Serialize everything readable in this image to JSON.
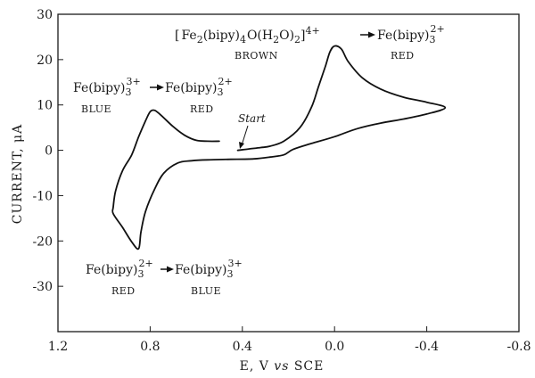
{
  "chart_data": {
    "type": "line",
    "title": "",
    "xlabel_parts": [
      "E,  V ",
      "vs",
      " SCE"
    ],
    "ylabel": "CURRENT, μA",
    "xlim": [
      1.2,
      -0.8
    ],
    "ylim": [
      -40,
      30
    ],
    "x_ticks": [
      1.2,
      0.8,
      0.4,
      0.0,
      -0.4,
      -0.8
    ],
    "x_tick_labels": [
      "1.2",
      "0.8",
      "0.4",
      "0.0",
      "-0.4",
      "-0.8"
    ],
    "y_ticks": [
      30,
      20,
      10,
      0,
      -10,
      -20,
      -30
    ],
    "y_tick_labels": [
      "30",
      "20",
      "10",
      "0",
      "-10",
      "-20",
      "-30"
    ],
    "grid": false,
    "series": [
      {
        "points": [
          [
            0.42,
            0.0
          ],
          [
            0.37,
            0.3
          ],
          [
            0.32,
            0.6
          ],
          [
            0.28,
            0.9
          ],
          [
            0.22,
            2.0
          ],
          [
            0.15,
            5.0
          ],
          [
            0.1,
            9.5
          ],
          [
            0.07,
            14.0
          ],
          [
            0.04,
            18.5
          ],
          [
            0.02,
            21.7
          ],
          [
            0.0,
            23.0
          ],
          [
            -0.03,
            22.3
          ],
          [
            -0.06,
            19.5
          ],
          [
            -0.12,
            16.0
          ],
          [
            -0.2,
            13.5
          ],
          [
            -0.3,
            11.7
          ],
          [
            -0.4,
            10.6
          ],
          [
            -0.48,
            9.4
          ],
          [
            -0.4,
            8.0
          ],
          [
            -0.3,
            6.9
          ],
          [
            -0.2,
            6.0
          ],
          [
            -0.1,
            4.8
          ],
          [
            0.0,
            3.0
          ],
          [
            0.1,
            1.5
          ],
          [
            0.18,
            0.2
          ],
          [
            0.22,
            -1.0
          ],
          [
            0.28,
            -1.5
          ],
          [
            0.35,
            -1.9
          ],
          [
            0.45,
            -2.0
          ],
          [
            0.55,
            -2.1
          ],
          [
            0.62,
            -2.3
          ],
          [
            0.68,
            -2.8
          ],
          [
            0.74,
            -5.0
          ],
          [
            0.78,
            -8.5
          ],
          [
            0.82,
            -13.5
          ],
          [
            0.84,
            -18.0
          ],
          [
            0.85,
            -21.7
          ],
          [
            0.88,
            -20.2
          ],
          [
            0.92,
            -17.0
          ],
          [
            0.96,
            -14.0
          ],
          [
            0.96,
            -12.5
          ],
          [
            0.95,
            -9.0
          ],
          [
            0.92,
            -4.5
          ],
          [
            0.88,
            -1.0
          ],
          [
            0.85,
            3.0
          ],
          [
            0.82,
            6.5
          ],
          [
            0.8,
            8.5
          ],
          [
            0.78,
            8.8
          ],
          [
            0.75,
            7.6
          ],
          [
            0.7,
            5.2
          ],
          [
            0.65,
            3.3
          ],
          [
            0.6,
            2.2
          ],
          [
            0.55,
            2.0
          ],
          [
            0.5,
            2.0
          ]
        ]
      }
    ],
    "annotations": [
      {
        "formula": "[Fe2(bipy)4O(H2O)2]4+ → Fe(bipy)3 2+",
        "colors": [
          "BROWN",
          "RED"
        ]
      },
      {
        "formula": "Fe(bipy)3 3+ → Fe(bipy)3 2+",
        "colors": [
          "BLUE",
          "RED"
        ]
      },
      {
        "formula": "Fe(bipy)3 2+ → Fe(bipy)3 3+",
        "colors": [
          "RED",
          "BLUE"
        ]
      }
    ],
    "start_label": "Start"
  },
  "labels": {
    "fe_bipy": "Fe(bipy)",
    "sub3": "3",
    "sup3": "3+",
    "sup2": "2+",
    "fe2_open": "[",
    "fe2_part1": "Fe",
    "fe2_sub2": "2",
    "fe2_part2": "(bipy)",
    "fe2_sub4": "4",
    "fe2_part3": "O(H",
    "fe2_sub2b": "2",
    "fe2_part4": "O)",
    "fe2_sub2c": "2",
    "fe2_close": "]",
    "fe2_sup": "4+",
    "brown": "BROWN",
    "red": "RED",
    "blue": "BLUE"
  }
}
